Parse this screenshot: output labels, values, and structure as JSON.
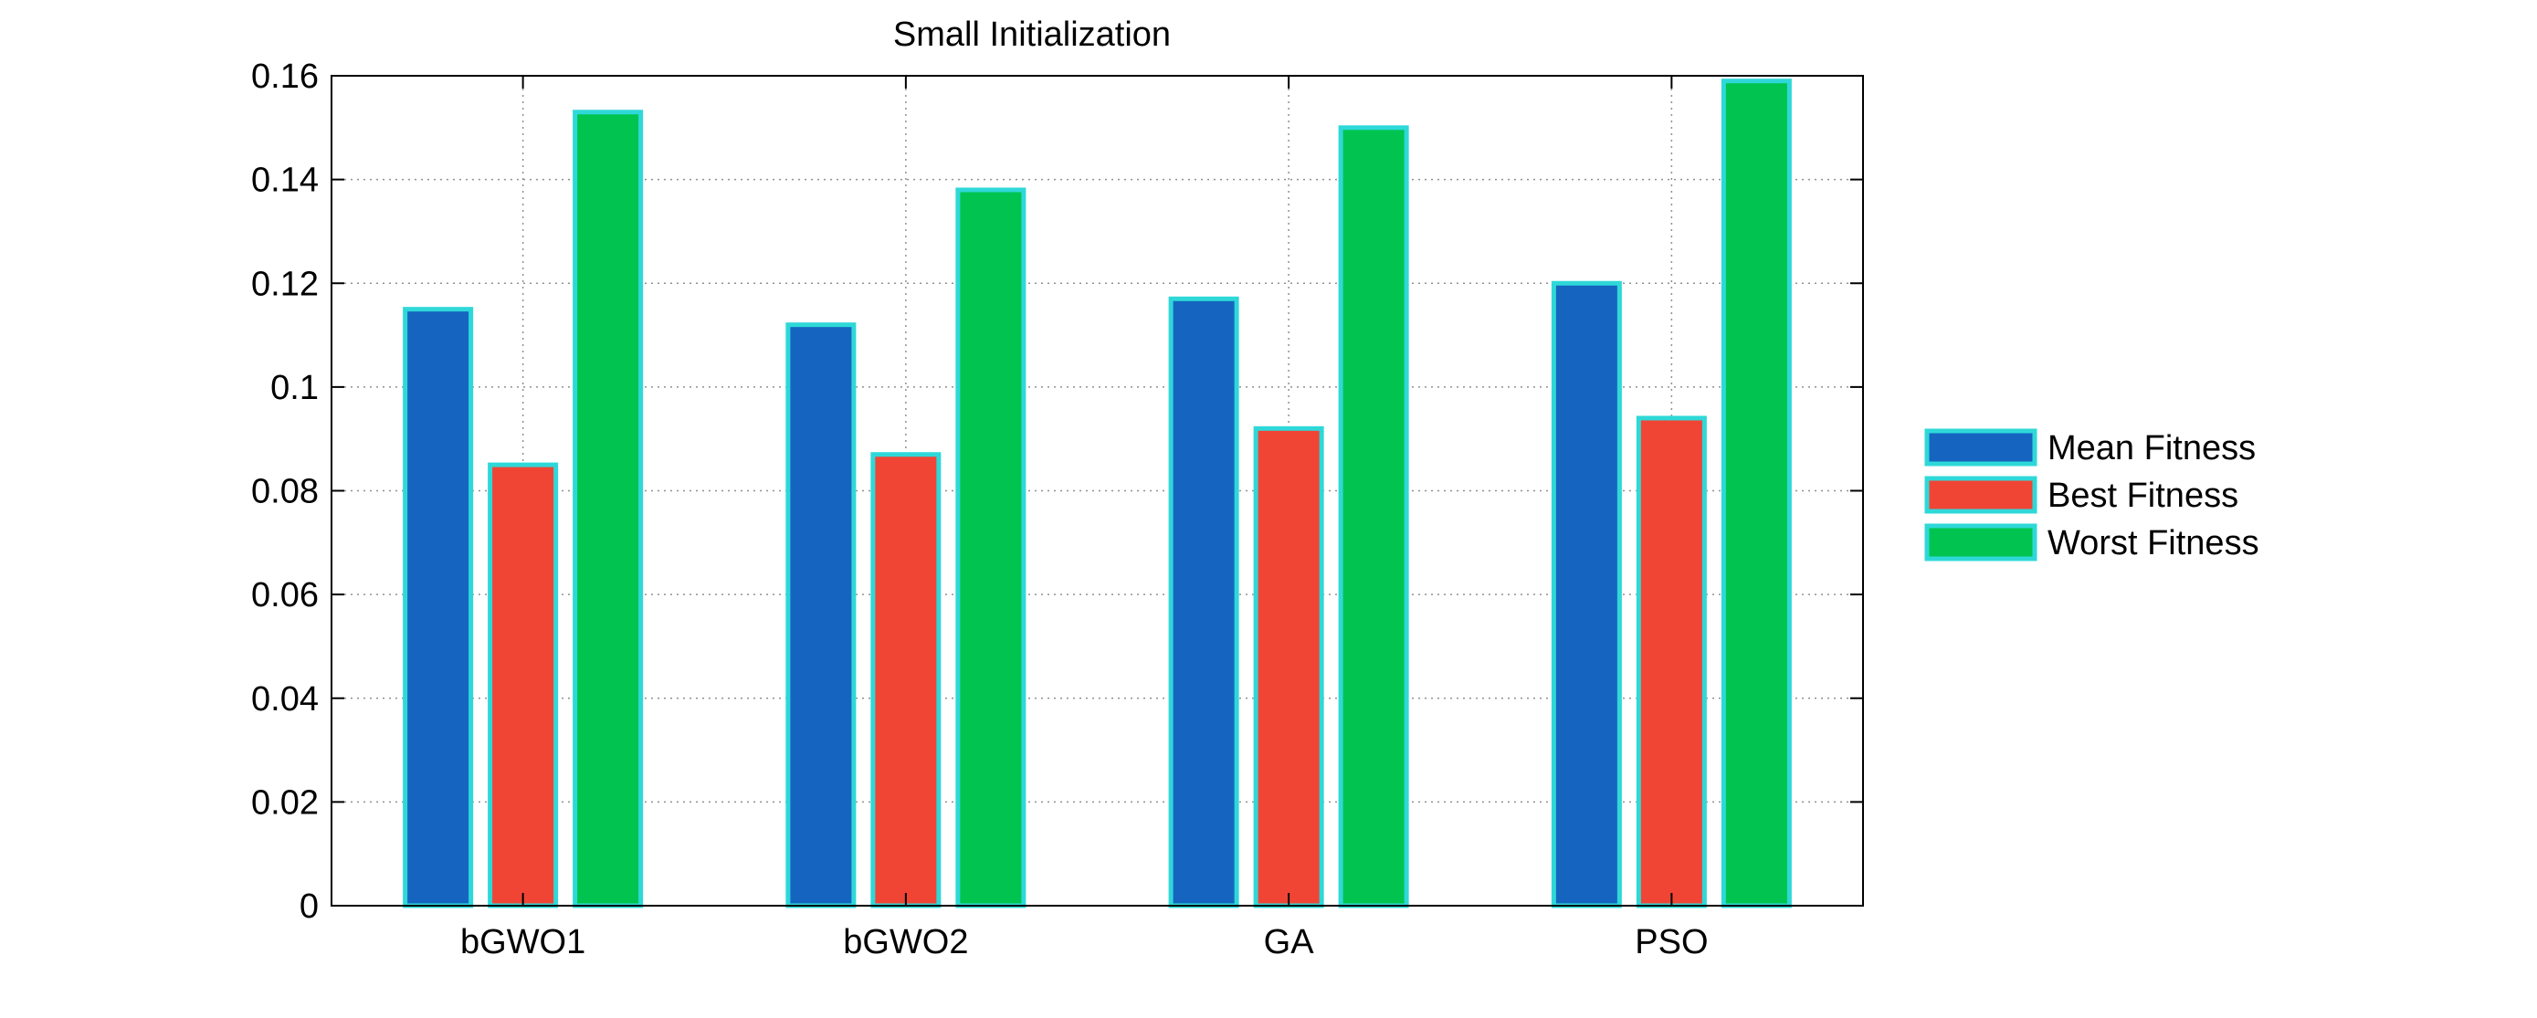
{
  "chart_data": {
    "type": "bar",
    "title": "Small Initialization",
    "xlabel": "",
    "ylabel": "",
    "categories": [
      "bGWO1",
      "bGWO2",
      "GA",
      "PSO"
    ],
    "series": [
      {
        "name": "Mean Fitness",
        "values": [
          0.115,
          0.112,
          0.117,
          0.12
        ],
        "color": "#1565C0"
      },
      {
        "name": "Best Fitness",
        "values": [
          0.085,
          0.087,
          0.092,
          0.094
        ],
        "color": "#F04535"
      },
      {
        "name": "Worst Fitness",
        "values": [
          0.153,
          0.138,
          0.15,
          0.159
        ],
        "color": "#00C44F"
      }
    ],
    "bar_edge_color": "#2FD8D8",
    "ylim": [
      0,
      0.16
    ],
    "yticks": [
      "0",
      "0.02",
      "0.04",
      "0.06",
      "0.08",
      "0.1",
      "0.12",
      "0.14",
      "0.16"
    ],
    "grid": true,
    "legend_position": "right"
  }
}
